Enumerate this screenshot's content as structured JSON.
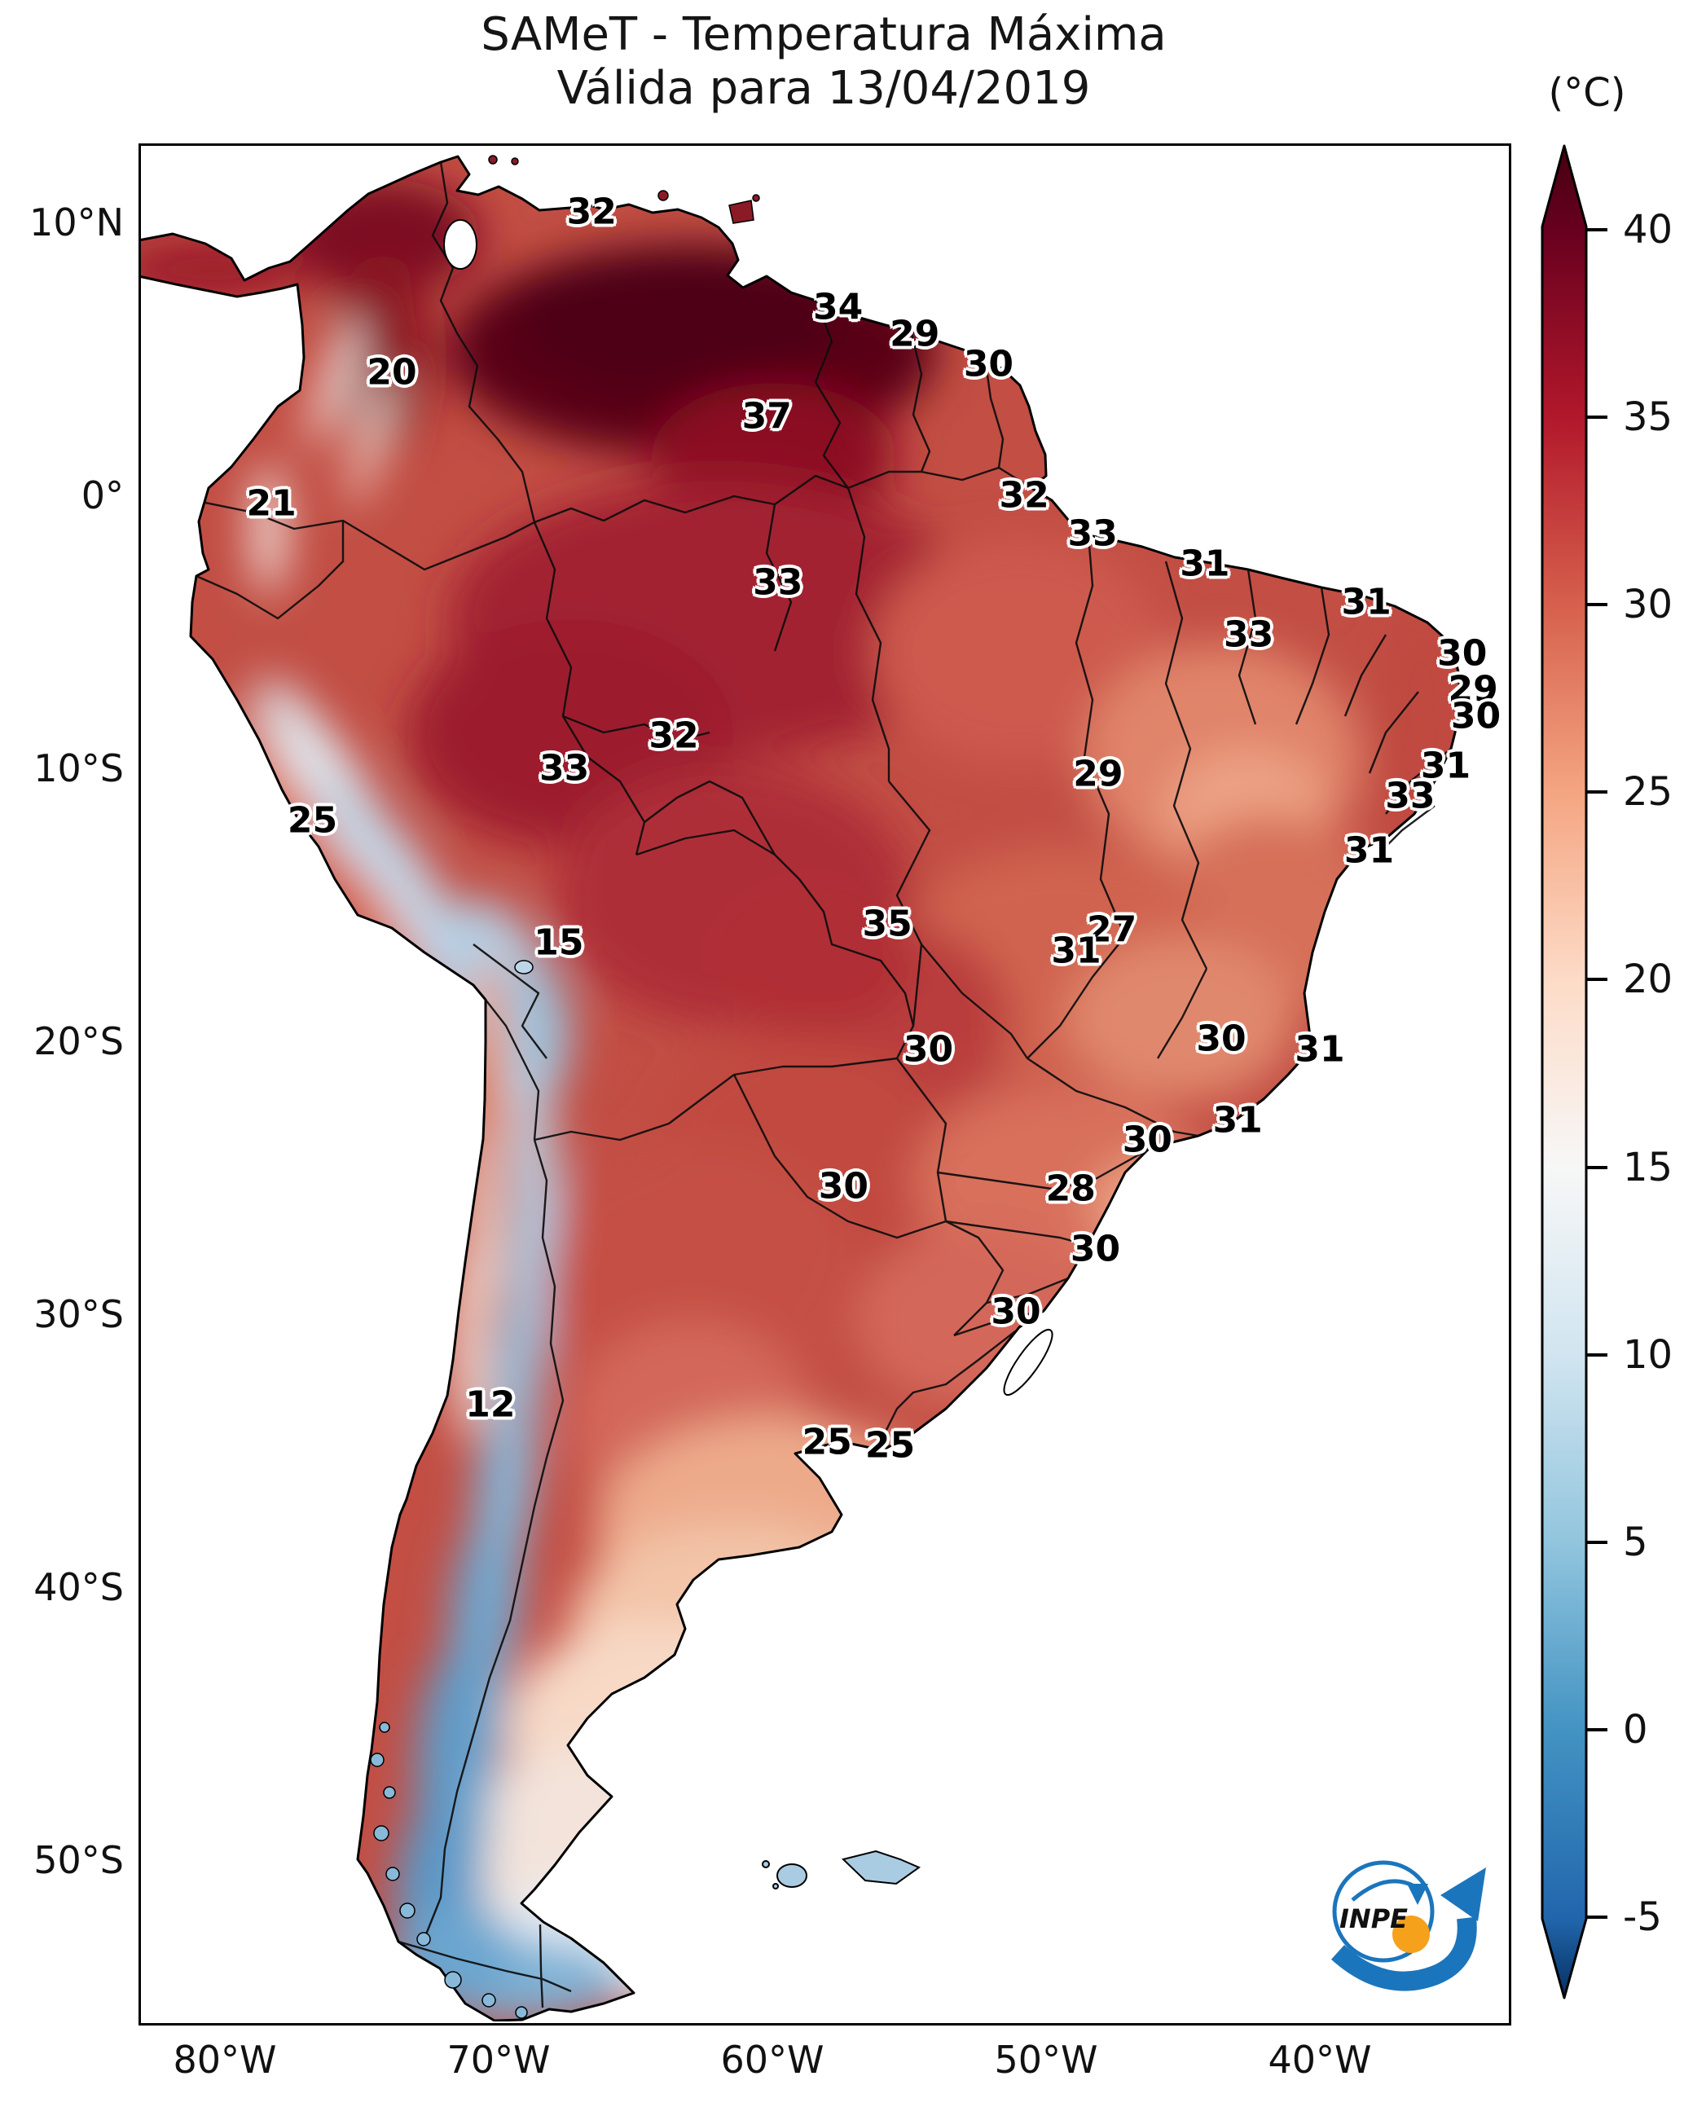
{
  "figure": {
    "title_line1": "SAMeT - Temperatura Máxima",
    "title_line2": "Válida para 13/04/2019"
  },
  "logo": {
    "name": "INPE"
  },
  "chart_data": {
    "type": "heatmap",
    "title": "SAMeT - Temperatura Máxima",
    "subtitle": "Válida para 13/04/2019",
    "unit_label": "(°C)",
    "legend_position": "right-colorbar",
    "colorbar_range": [
      -5,
      40
    ],
    "colorbar_extended_ends": true,
    "colorbar_ticks": [
      40,
      35,
      30,
      25,
      20,
      15,
      10,
      5,
      0,
      -5
    ],
    "colorbar_colors": {
      "40": "#67001f",
      "35": "#b2182b",
      "30": "#d6604d",
      "25": "#f4a582",
      "20": "#fddbc7",
      "15": "#f7f7f7",
      "10": "#d1e5f0",
      "5": "#92c5de",
      "0": "#4393c3",
      "-5": "#2166ac",
      "under": "#053061",
      "over": "#450011"
    },
    "lat_ticks": [
      {
        "label": "10°N",
        "deg": 10
      },
      {
        "label": "0°",
        "deg": 0
      },
      {
        "label": "10°S",
        "deg": -10
      },
      {
        "label": "20°S",
        "deg": -20
      },
      {
        "label": "30°S",
        "deg": -30
      },
      {
        "label": "40°S",
        "deg": -40
      },
      {
        "label": "50°S",
        "deg": -50
      }
    ],
    "lon_ticks": [
      {
        "label": "80°W",
        "deg": -80
      },
      {
        "label": "70°W",
        "deg": -70
      },
      {
        "label": "60°W",
        "deg": -60
      },
      {
        "label": "50°W",
        "deg": -50
      },
      {
        "label": "40°W",
        "deg": -40
      }
    ],
    "points": [
      {
        "value": 32,
        "lat": 10.4,
        "lon": -66.6
      },
      {
        "value": 34,
        "lat": 6.9,
        "lon": -57.6
      },
      {
        "value": 29,
        "lat": 5.9,
        "lon": -54.8
      },
      {
        "value": 30,
        "lat": 4.8,
        "lon": -52.1
      },
      {
        "value": 20,
        "lat": 4.5,
        "lon": -73.9
      },
      {
        "value": 37,
        "lat": 2.9,
        "lon": -60.2
      },
      {
        "value": 21,
        "lat": -0.3,
        "lon": -78.3
      },
      {
        "value": 32,
        "lat": 0.0,
        "lon": -50.8
      },
      {
        "value": 33,
        "lat": -1.4,
        "lon": -48.3
      },
      {
        "value": 31,
        "lat": -2.5,
        "lon": -44.2
      },
      {
        "value": 33,
        "lat": -3.2,
        "lon": -59.8
      },
      {
        "value": 31,
        "lat": -3.9,
        "lon": -38.3
      },
      {
        "value": 33,
        "lat": -5.1,
        "lon": -42.6
      },
      {
        "value": 30,
        "lat": -5.8,
        "lon": -34.8
      },
      {
        "value": 29,
        "lat": -7.1,
        "lon": -34.4
      },
      {
        "value": 30,
        "lat": -8.1,
        "lon": -34.3
      },
      {
        "value": 32,
        "lat": -8.8,
        "lon": -63.6
      },
      {
        "value": 31,
        "lat": -9.9,
        "lon": -35.4
      },
      {
        "value": 33,
        "lat": -10.0,
        "lon": -67.6
      },
      {
        "value": 29,
        "lat": -10.2,
        "lon": -48.1
      },
      {
        "value": 33,
        "lat": -11.0,
        "lon": -36.7
      },
      {
        "value": 25,
        "lat": -11.9,
        "lon": -76.8
      },
      {
        "value": 31,
        "lat": -13.0,
        "lon": -38.2
      },
      {
        "value": 35,
        "lat": -15.7,
        "lon": -55.8
      },
      {
        "value": 27,
        "lat": -15.9,
        "lon": -47.6
      },
      {
        "value": 31,
        "lat": -16.7,
        "lon": -48.9
      },
      {
        "value": 15,
        "lat": -16.4,
        "lon": -67.8
      },
      {
        "value": 30,
        "lat": -20.3,
        "lon": -54.3
      },
      {
        "value": 30,
        "lat": -19.9,
        "lon": -43.6
      },
      {
        "value": 31,
        "lat": -20.3,
        "lon": -40.0
      },
      {
        "value": 30,
        "lat": -25.3,
        "lon": -57.4
      },
      {
        "value": 30,
        "lat": -23.6,
        "lon": -46.3
      },
      {
        "value": 31,
        "lat": -22.9,
        "lon": -43.0
      },
      {
        "value": 28,
        "lat": -25.4,
        "lon": -49.1
      },
      {
        "value": 30,
        "lat": -27.6,
        "lon": -48.2
      },
      {
        "value": 30,
        "lat": -29.9,
        "lon": -51.1
      },
      {
        "value": 12,
        "lat": -33.3,
        "lon": -70.3
      },
      {
        "value": 25,
        "lat": -34.7,
        "lon": -58.0
      },
      {
        "value": 25,
        "lat": -34.8,
        "lon": -55.7
      }
    ]
  }
}
